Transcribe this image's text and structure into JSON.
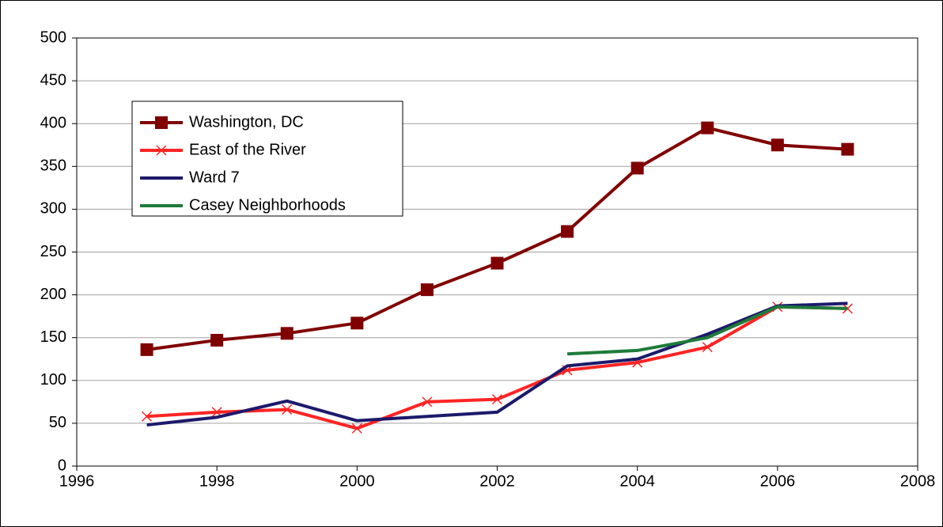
{
  "chart_data": {
    "type": "line",
    "x": [
      1997,
      1998,
      1999,
      2000,
      2001,
      2002,
      2003,
      2004,
      2005,
      2006,
      2007
    ],
    "series": [
      {
        "name": "Washington, DC",
        "color": "#800000",
        "marker": "square",
        "values": [
          136,
          147,
          155,
          167,
          206,
          237,
          274,
          348,
          395,
          375,
          370
        ]
      },
      {
        "name": "East of the River",
        "color": "#ff2424",
        "marker": "x",
        "values": [
          58,
          63,
          66,
          44,
          75,
          78,
          112,
          121,
          139,
          186,
          184
        ]
      },
      {
        "name": "Ward 7",
        "color": "#1c1a6b",
        "values": [
          48,
          57,
          76,
          53,
          58,
          63,
          117,
          125,
          154,
          187,
          190
        ]
      },
      {
        "name": "Casey Neighborhoods",
        "color": "#1e7b3a",
        "values": [
          null,
          null,
          null,
          null,
          null,
          null,
          131,
          135,
          150,
          186,
          184
        ]
      }
    ],
    "xlim": [
      1996,
      2008
    ],
    "xticks": [
      1996,
      1998,
      2000,
      2002,
      2004,
      2006,
      2008
    ],
    "ylim": [
      0,
      500
    ],
    "yticks": [
      0,
      50,
      100,
      150,
      200,
      250,
      300,
      350,
      400,
      450,
      500
    ],
    "grid": true,
    "legend": "upper left"
  }
}
